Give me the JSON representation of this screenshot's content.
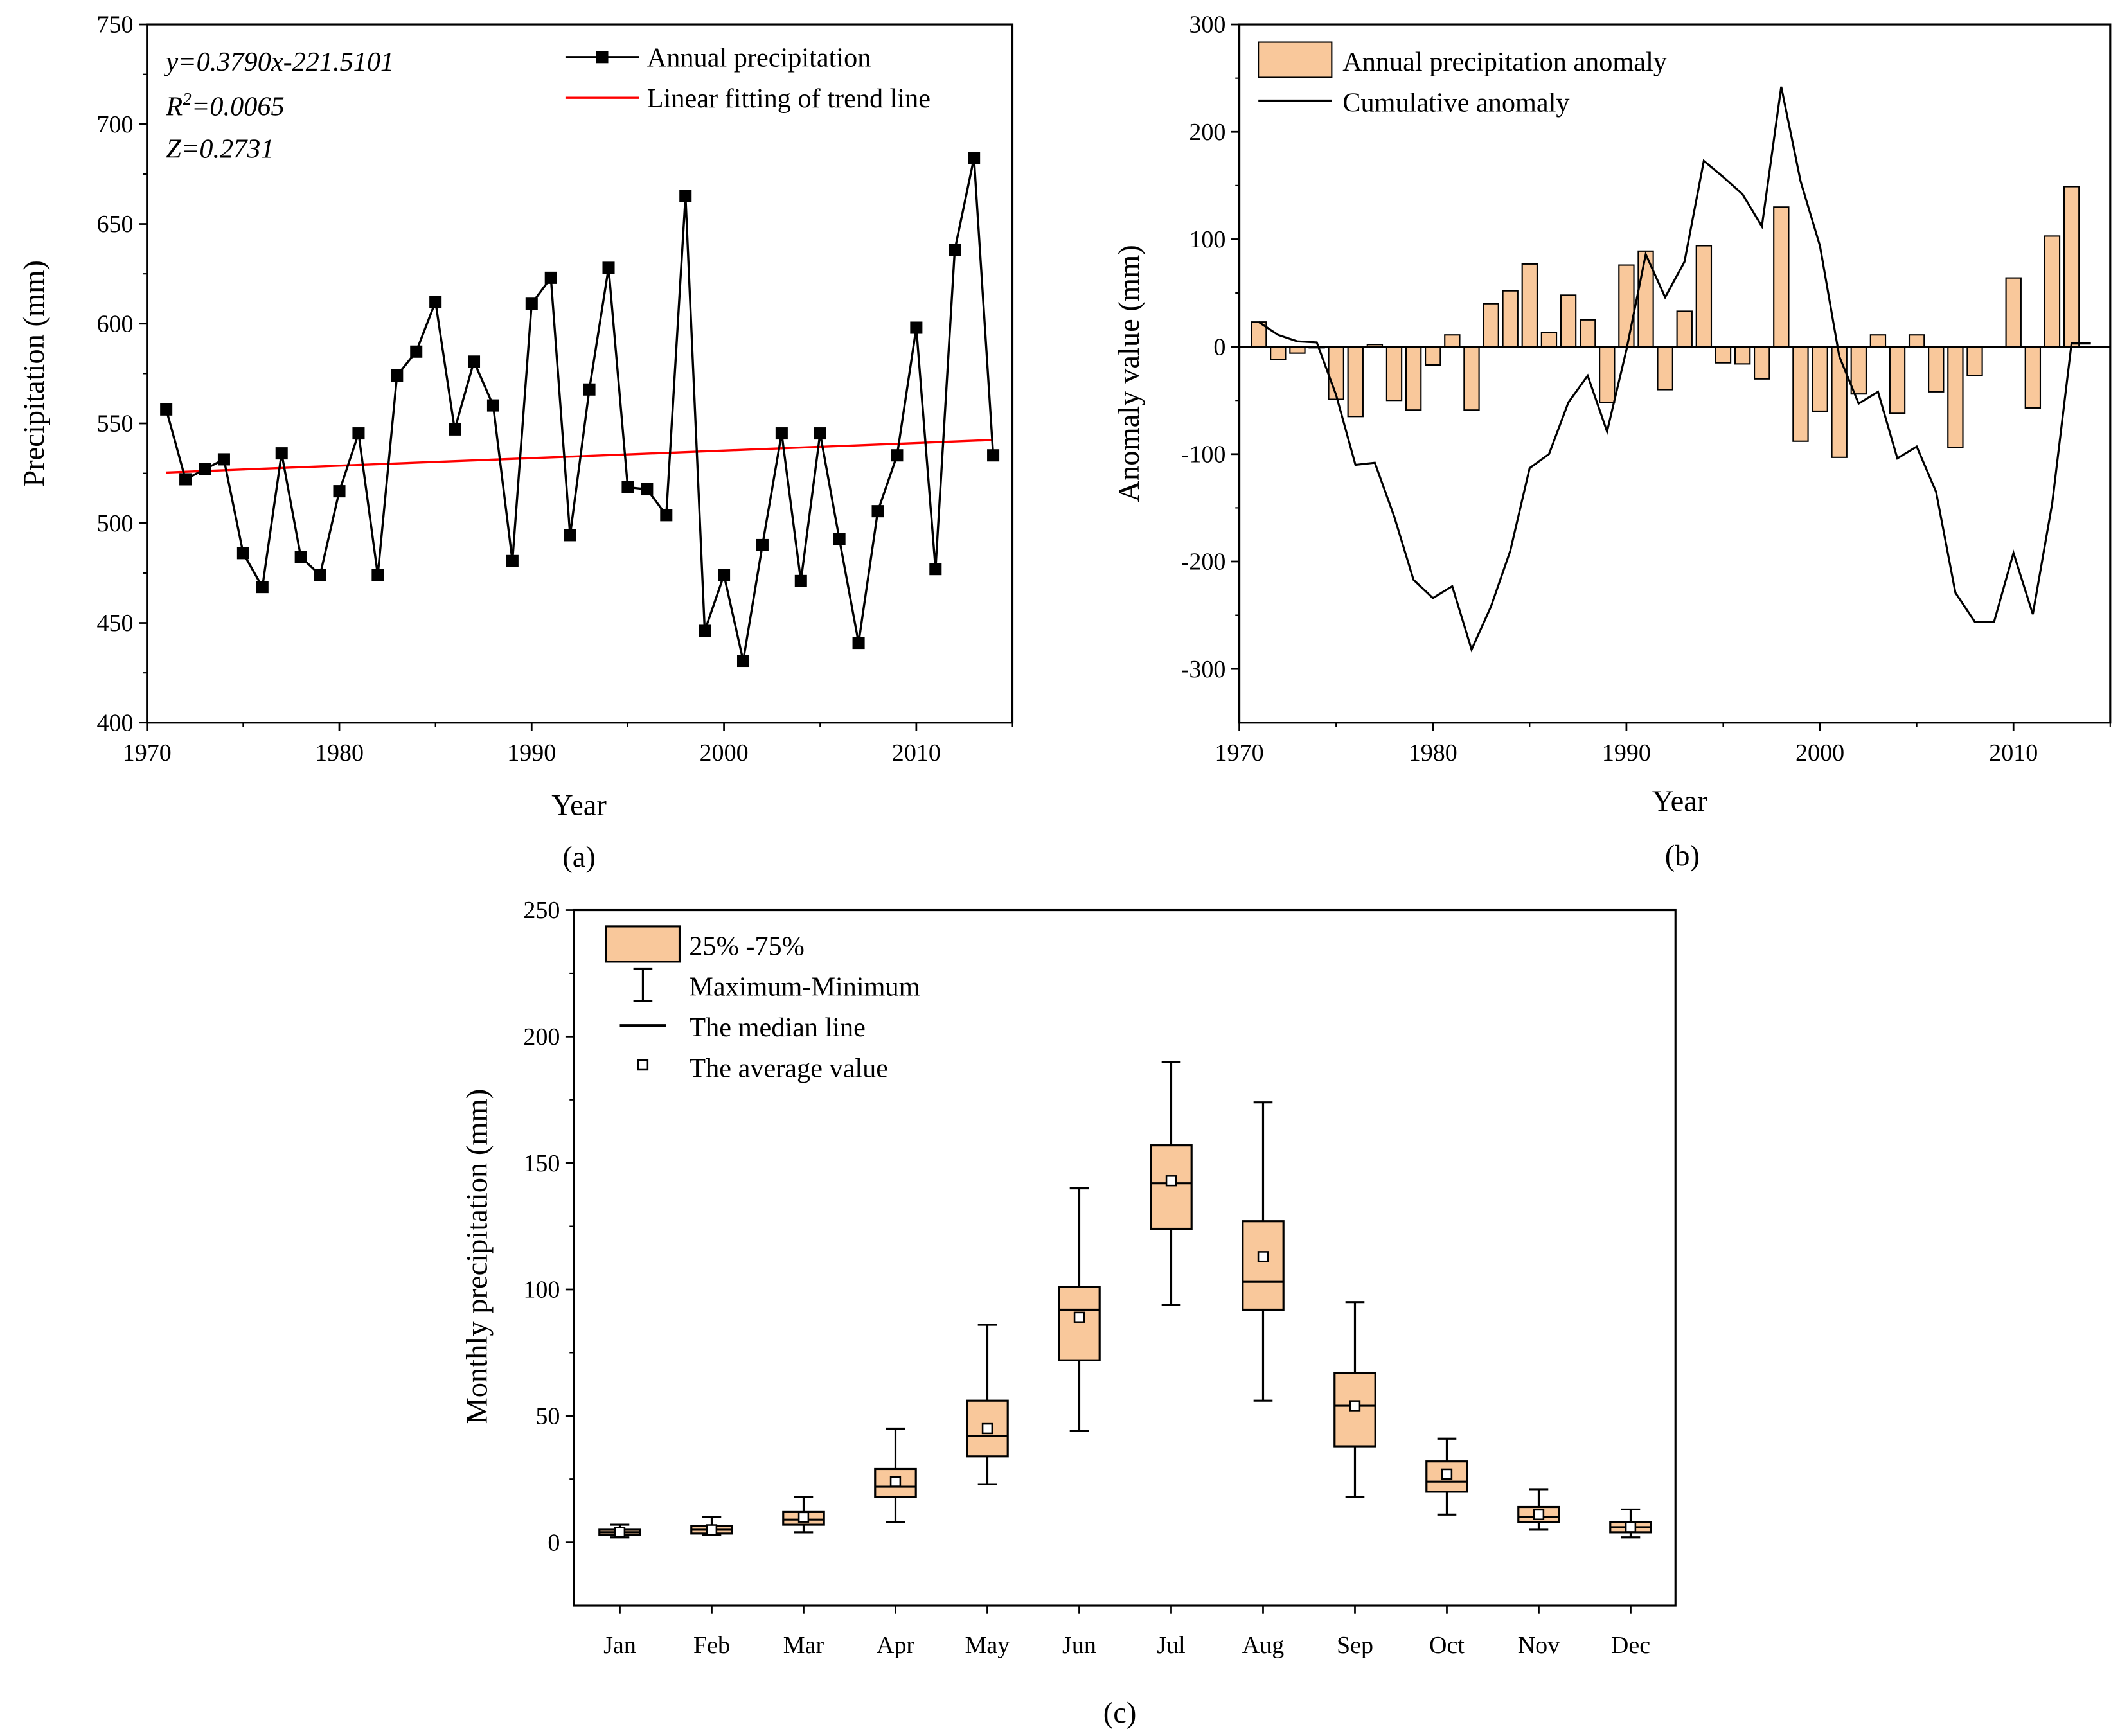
{
  "colors": {
    "bar_fill": "#F9C89B",
    "trend_line": "#FF0000",
    "line": "#000000"
  },
  "chart_data": [
    {
      "type": "line",
      "caption": "(a)",
      "xlabel": "Year",
      "ylabel": "Precipitation (mm)",
      "xlim": [
        1970,
        2015
      ],
      "ylim": [
        400,
        750
      ],
      "xticks": [
        1970,
        1980,
        1990,
        2000,
        2010
      ],
      "yticks": [
        400,
        450,
        500,
        550,
        600,
        650,
        700,
        750
      ],
      "legend_position": "top-right",
      "annotations": {
        "equation": "y=0.3790x-221.5101",
        "r2_prefix": "R",
        "r2_sup": "2",
        "r2_value": "=0.0065",
        "z": "Z=0.2731"
      },
      "x": [
        1971,
        1972,
        1973,
        1974,
        1975,
        1976,
        1977,
        1978,
        1979,
        1980,
        1981,
        1982,
        1983,
        1984,
        1985,
        1986,
        1987,
        1988,
        1989,
        1990,
        1991,
        1992,
        1993,
        1994,
        1995,
        1996,
        1997,
        1998,
        1999,
        2000,
        2001,
        2002,
        2003,
        2004,
        2005,
        2006,
        2007,
        2008,
        2009,
        2010,
        2011,
        2012,
        2013,
        2014
      ],
      "series": [
        {
          "name": "Annual precipitation",
          "marker": "square",
          "values": [
            557,
            522,
            527,
            532,
            485,
            468,
            535,
            483,
            474,
            516,
            545,
            474,
            574,
            586,
            611,
            547,
            581,
            559,
            481,
            610,
            623,
            494,
            567,
            628,
            518,
            517,
            504,
            664,
            446,
            474,
            431,
            489,
            545,
            471,
            545,
            492,
            440,
            506,
            534,
            598,
            477,
            637,
            683,
            534
          ]
        },
        {
          "name": "Linear fitting of trend line",
          "values_at_ends": [
            [
              1971,
              525.4
            ],
            [
              2014,
              541.7
            ]
          ]
        }
      ]
    },
    {
      "type": "bar+line",
      "caption": "(b)",
      "xlabel": "Year",
      "ylabel": "Anomaly value (mm)",
      "xlim": [
        1970,
        2015
      ],
      "ylim": [
        -350,
        300
      ],
      "xticks": [
        1970,
        1980,
        1990,
        2000,
        2010
      ],
      "yticks": [
        -300,
        -200,
        -100,
        0,
        100,
        200,
        300
      ],
      "legend_position": "top-left",
      "x": [
        1971,
        1972,
        1973,
        1974,
        1975,
        1976,
        1977,
        1978,
        1979,
        1980,
        1981,
        1982,
        1983,
        1984,
        1985,
        1986,
        1987,
        1988,
        1989,
        1990,
        1991,
        1992,
        1993,
        1994,
        1995,
        1996,
        1997,
        1998,
        1999,
        2000,
        2001,
        2002,
        2003,
        2004,
        2005,
        2006,
        2007,
        2008,
        2009,
        2010,
        2011,
        2012,
        2013,
        2014
      ],
      "series": [
        {
          "name": "Annual precipitation anomaly",
          "kind": "bar",
          "values": [
            23,
            -12,
            -6,
            -1,
            -49,
            -65,
            2,
            -50,
            -59,
            -17,
            11,
            -59,
            40,
            52,
            77,
            13,
            48,
            25,
            -52,
            76,
            89,
            -40,
            33,
            94,
            -15,
            -16,
            -30,
            130,
            -88,
            -60,
            -103,
            -44,
            11,
            -62,
            11,
            -42,
            -94,
            -27,
            0,
            64,
            -57,
            103,
            149,
            0
          ]
        },
        {
          "name": "Cumulative anomaly",
          "kind": "line",
          "values": [
            23,
            11,
            5,
            4,
            -45,
            -110,
            -108,
            -158,
            -217,
            -234,
            -223,
            -282,
            -242,
            -190,
            -113,
            -100,
            -52,
            -27,
            -79,
            -3,
            86,
            46,
            79,
            173,
            158,
            142,
            112,
            242,
            154,
            94,
            -9,
            -53,
            -42,
            -104,
            -93,
            -135,
            -229,
            -256,
            -256,
            -192,
            -249,
            -146,
            3,
            3
          ]
        }
      ]
    },
    {
      "type": "box",
      "caption": "(c)",
      "xlabel": "",
      "ylabel": "Monthly precipitation (mm)",
      "ylim": [
        -25,
        250
      ],
      "yticks": [
        0,
        50,
        100,
        150,
        200,
        250
      ],
      "legend_position": "top-left",
      "legend": [
        "25% -75%",
        "Maximum-Minimum",
        "The median line",
        "The average value"
      ],
      "categories": [
        "Jan",
        "Feb",
        "Mar",
        "Apr",
        "May",
        "Jun",
        "Jul",
        "Aug",
        "Sep",
        "Oct",
        "Nov",
        "Dec"
      ],
      "min": [
        2,
        3,
        4,
        8,
        23,
        44,
        94,
        56,
        18,
        11,
        5,
        2
      ],
      "q1": [
        3,
        3.5,
        7,
        18,
        34,
        72,
        124,
        92,
        38,
        20,
        8,
        4
      ],
      "median": [
        4,
        5,
        9,
        22,
        42,
        92,
        142,
        103,
        54,
        24,
        10,
        6
      ],
      "q3": [
        5,
        6.5,
        12,
        29,
        56,
        101,
        157,
        127,
        67,
        32,
        14,
        8
      ],
      "max": [
        7,
        10,
        18,
        45,
        86,
        140,
        190,
        174,
        95,
        41,
        21,
        13
      ],
      "mean": [
        4,
        5,
        10,
        24,
        45,
        89,
        143,
        113,
        54,
        27,
        11,
        6
      ]
    }
  ]
}
